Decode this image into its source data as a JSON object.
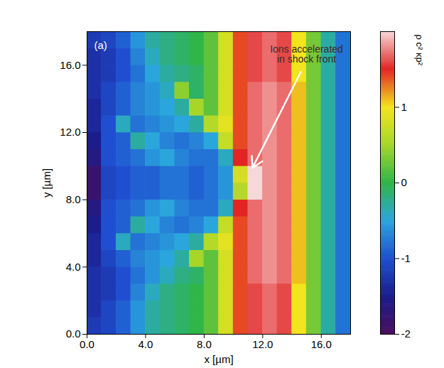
{
  "chart_data": {
    "type": "heatmap",
    "panel_label": "(a)",
    "x_label": "x [µm]",
    "y_label": "y [µm]",
    "annotation": "Ions accelerated in shock front",
    "xlim": [
      0,
      18
    ],
    "ylim": [
      0,
      18
    ],
    "xticks": [
      {
        "value": 0,
        "label": "0.0"
      },
      {
        "value": 4,
        "label": "4.0"
      },
      {
        "value": 8,
        "label": "8.0"
      },
      {
        "value": 12,
        "label": "12.0"
      },
      {
        "value": 16,
        "label": "16.0"
      }
    ],
    "yticks": [
      {
        "value": 0,
        "label": "0.0"
      },
      {
        "value": 4,
        "label": "4.0"
      },
      {
        "value": 8,
        "label": "8.0"
      },
      {
        "value": 12,
        "label": "12.0"
      },
      {
        "value": 16,
        "label": "16.0"
      }
    ],
    "x": [
      0.5,
      1.5,
      2.5,
      3.5,
      4.5,
      5.5,
      6.5,
      7.5,
      8.5,
      9.5,
      10.5,
      11.5,
      12.5,
      13.5,
      14.5,
      15.5,
      16.5,
      17.5
    ],
    "y": [
      0.5,
      1.5,
      2.5,
      3.5,
      4.5,
      5.5,
      6.5,
      7.5,
      8.5,
      9.5,
      10.5,
      11.5,
      12.5,
      13.5,
      14.5,
      15.5,
      16.5,
      17.5
    ],
    "values": [
      [
        -1.2,
        -1.1,
        -0.9,
        -0.6,
        -0.3,
        -0.2,
        -0.1,
        0.0,
        0.2,
        0.8,
        1.4,
        1.6,
        1.7,
        1.6,
        1.0,
        0.3,
        -0.3,
        -0.8
      ],
      [
        -1.3,
        -1.1,
        -0.9,
        -0.6,
        -0.3,
        -0.2,
        -0.1,
        0.0,
        0.2,
        0.8,
        1.4,
        1.6,
        1.7,
        1.6,
        1.0,
        0.3,
        -0.3,
        -0.8
      ],
      [
        -1.3,
        -1.2,
        -1.0,
        -0.7,
        -0.4,
        -0.2,
        -0.1,
        0.0,
        0.2,
        0.8,
        1.4,
        1.6,
        1.7,
        1.6,
        1.0,
        0.3,
        -0.3,
        -0.8
      ],
      [
        -1.3,
        -1.2,
        -1.0,
        -0.8,
        -0.6,
        -0.4,
        -0.2,
        -0.1,
        0.2,
        0.8,
        1.4,
        1.7,
        1.8,
        1.7,
        1.1,
        0.3,
        -0.3,
        -0.8
      ],
      [
        -1.4,
        -1.1,
        -0.9,
        -0.7,
        -0.6,
        -0.5,
        -0.3,
        0.5,
        0.2,
        0.8,
        1.4,
        1.7,
        1.8,
        1.7,
        1.1,
        0.3,
        -0.3,
        -0.8
      ],
      [
        -1.4,
        -1.0,
        -0.4,
        -0.8,
        -0.7,
        -0.6,
        -0.5,
        -0.3,
        0.6,
        0.9,
        1.4,
        1.7,
        1.8,
        1.7,
        1.1,
        0.3,
        -0.3,
        -0.8
      ],
      [
        -1.5,
        -1.0,
        -0.9,
        -0.3,
        -0.5,
        -0.7,
        -0.8,
        -0.7,
        -0.5,
        0.7,
        1.4,
        1.7,
        1.8,
        1.7,
        1.1,
        0.3,
        -0.3,
        -0.8
      ],
      [
        -1.6,
        -1.0,
        -0.9,
        -0.8,
        -0.6,
        -0.5,
        -0.7,
        -0.8,
        -0.8,
        -0.4,
        1.5,
        1.7,
        1.8,
        1.7,
        1.1,
        0.3,
        -0.3,
        -0.8
      ],
      [
        -1.8,
        -1.1,
        -1.0,
        -0.9,
        -0.9,
        -0.8,
        -0.8,
        -0.9,
        -0.8,
        -0.6,
        0.6,
        2.0,
        1.8,
        1.7,
        1.1,
        0.3,
        -0.3,
        -0.8
      ],
      [
        -1.8,
        -1.1,
        -1.0,
        -0.9,
        -0.9,
        -0.8,
        -0.8,
        -0.9,
        -0.8,
        -0.6,
        0.8,
        2.0,
        1.8,
        1.7,
        1.1,
        0.3,
        -0.3,
        -0.8
      ],
      [
        -1.6,
        -1.0,
        -0.9,
        -0.8,
        -0.6,
        -0.5,
        -0.7,
        -0.8,
        -0.8,
        -0.4,
        1.5,
        1.7,
        1.8,
        1.7,
        1.1,
        0.3,
        -0.3,
        -0.8
      ],
      [
        -1.5,
        -1.0,
        -0.9,
        -0.3,
        -0.5,
        -0.7,
        -0.8,
        -0.7,
        -0.5,
        0.7,
        1.4,
        1.7,
        1.8,
        1.7,
        1.1,
        0.3,
        -0.3,
        -0.8
      ],
      [
        -1.4,
        -1.0,
        -0.4,
        -0.8,
        -0.7,
        -0.6,
        -0.5,
        -0.3,
        0.6,
        0.9,
        1.4,
        1.7,
        1.8,
        1.7,
        1.1,
        0.3,
        -0.3,
        -0.8
      ],
      [
        -1.4,
        -1.1,
        -0.9,
        -0.7,
        -0.6,
        -0.5,
        -0.3,
        0.5,
        0.2,
        0.8,
        1.4,
        1.7,
        1.8,
        1.7,
        1.1,
        0.3,
        -0.3,
        -0.8
      ],
      [
        -1.3,
        -1.1,
        -0.9,
        -0.7,
        -0.6,
        -0.4,
        0.4,
        -0.1,
        0.2,
        0.8,
        1.4,
        1.7,
        1.8,
        1.7,
        1.1,
        0.3,
        -0.3,
        -0.8
      ],
      [
        -1.3,
        -1.2,
        -1.0,
        -0.8,
        -0.5,
        -0.3,
        -0.2,
        -0.1,
        0.2,
        0.8,
        1.4,
        1.6,
        1.7,
        1.6,
        1.0,
        0.3,
        -0.3,
        -0.8
      ],
      [
        -1.3,
        -1.2,
        -1.0,
        -0.7,
        -0.4,
        -0.2,
        -0.1,
        0.0,
        0.2,
        0.8,
        1.4,
        1.6,
        1.7,
        1.6,
        1.0,
        0.3,
        -0.3,
        -0.8
      ],
      [
        -1.2,
        -1.1,
        -0.9,
        -0.6,
        -0.3,
        -0.2,
        -0.1,
        0.0,
        0.2,
        0.8,
        1.4,
        1.6,
        1.7,
        1.6,
        1.0,
        0.3,
        -0.3,
        -0.8
      ]
    ],
    "colorbar": {
      "range": [
        -2,
        2
      ],
      "ticks": [
        -2,
        -1,
        0,
        1
      ],
      "label": "ρ c² κp²"
    }
  }
}
